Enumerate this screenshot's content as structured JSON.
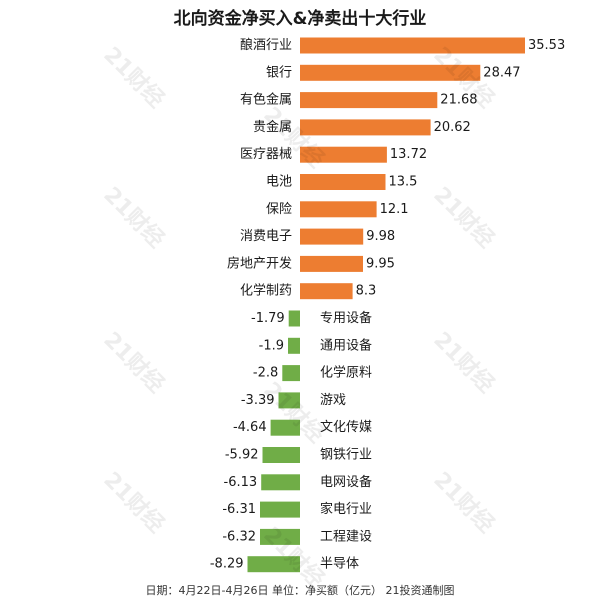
{
  "chart_data": {
    "type": "bar",
    "orientation": "horizontal",
    "title": "北向资金净买入&净卖出十大行业",
    "footer": "日期：4月22日-4月26日 单位：净买额（亿元） 21投资通制图",
    "watermark": "21财经",
    "categories": [
      "酿酒行业",
      "银行",
      "有色金属",
      "贵金属",
      "医疗器械",
      "电池",
      "保险",
      "消费电子",
      "房地产开发",
      "化学制药",
      "专用设备",
      "通用设备",
      "化学原料",
      "游戏",
      "文化传媒",
      "钢铁行业",
      "电网设备",
      "家电行业",
      "工程建设",
      "半导体"
    ],
    "values": [
      35.53,
      28.47,
      21.68,
      20.62,
      13.72,
      13.5,
      12.1,
      9.98,
      9.95,
      8.3,
      -1.79,
      -1.9,
      -2.8,
      -3.39,
      -4.64,
      -5.92,
      -6.13,
      -6.31,
      -6.32,
      -8.29
    ],
    "value_labels": [
      "35.53",
      "28.47",
      "21.68",
      "20.62",
      "13.72",
      "13.5",
      "12.1",
      "9.98",
      "9.95",
      "8.3",
      "-1.79",
      "-1.9",
      "-2.8",
      "-3.39",
      "-4.64",
      "-5.92",
      "-6.13",
      "-6.31",
      "-6.32",
      "-8.29"
    ],
    "colors": {
      "positive": "#ED7D31",
      "negative": "#70AD47"
    },
    "xlim": [
      -9,
      36
    ],
    "grid": false,
    "legend": "none"
  }
}
